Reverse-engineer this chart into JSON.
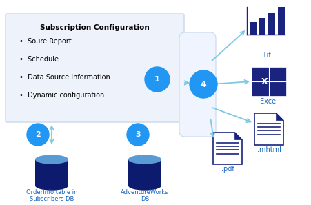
{
  "title": "Subscription Configuration",
  "bullet_items": [
    "Soure Report",
    "Schedule",
    "Data Source Information",
    "Dynamic configuration"
  ],
  "box_color": "#eef3fb",
  "box_border_color": "#c8d8ec",
  "circle_color": "#2196f3",
  "arrow_color": "#7ec8e3",
  "db_top_color": "#5b9bd5",
  "db_body_color": "#0d1b6e",
  "label_color": "#1565c0",
  "bar_color": "#1a237e",
  "excel_bg": "#1a237e",
  "doc_color": "#1a237e",
  "proc_box_color": "#f0f4ff",
  "proc_box_border": "#c8d8ec",
  "output_labels": [
    ".Tif",
    "Excel",
    ".mhtml",
    ".pdf"
  ],
  "background": "#ffffff",
  "figw": 4.51,
  "figh": 2.97,
  "dpi": 100
}
